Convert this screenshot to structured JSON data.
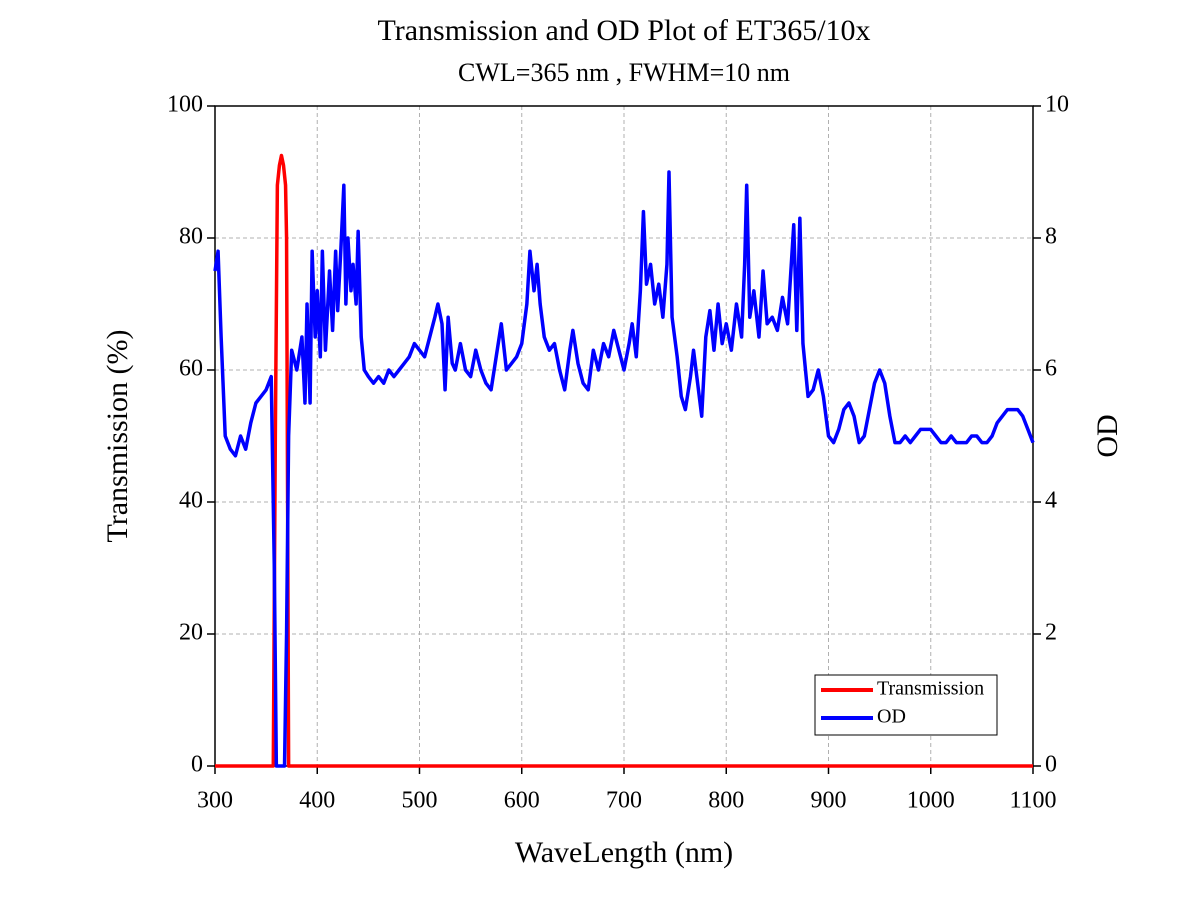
{
  "chart_data": {
    "type": "line",
    "title": "Transmission and OD Plot of ET365/10x",
    "subtitle": "CWL=365 nm , FWHM=10 nm",
    "x_label": "WaveLength (nm)",
    "y_label": "Transmission (%)",
    "y2_label": "OD",
    "xlim": [
      300,
      1100
    ],
    "xticks": [
      300,
      400,
      500,
      600,
      700,
      800,
      900,
      1000,
      1100
    ],
    "ylim": [
      0,
      100
    ],
    "yticks": [
      0,
      20,
      40,
      60,
      80,
      100
    ],
    "y2lim": [
      0,
      10
    ],
    "y2ticks": [
      0,
      2,
      4,
      6,
      8,
      10
    ],
    "grid": true,
    "legend": "lower right",
    "series": [
      {
        "name": "Transmission",
        "color": "#ff0000",
        "axis": "y",
        "x": [
          300,
          357,
          359,
          361,
          363,
          365,
          367,
          369,
          370,
          371,
          372,
          1100
        ],
        "values": [
          0,
          0,
          50,
          88,
          91,
          92.5,
          91,
          88,
          80,
          40,
          0,
          0
        ]
      },
      {
        "name": "OD",
        "color": "#0000ff",
        "axis": "y2",
        "x": [
          300,
          303,
          306,
          310,
          315,
          320,
          325,
          330,
          335,
          340,
          345,
          350,
          355,
          358,
          360,
          368,
          370,
          372,
          375,
          380,
          385,
          388,
          390,
          393,
          395,
          398,
          400,
          403,
          405,
          408,
          412,
          415,
          418,
          420,
          423,
          426,
          428,
          430,
          433,
          435,
          438,
          440,
          443,
          446,
          450,
          455,
          460,
          465,
          470,
          475,
          480,
          485,
          490,
          495,
          500,
          505,
          510,
          515,
          518,
          522,
          525,
          528,
          532,
          535,
          540,
          545,
          550,
          555,
          560,
          565,
          570,
          575,
          580,
          585,
          590,
          595,
          600,
          605,
          608,
          612,
          615,
          618,
          622,
          627,
          632,
          637,
          642,
          647,
          650,
          655,
          660,
          665,
          670,
          675,
          680,
          685,
          690,
          695,
          700,
          705,
          708,
          712,
          716,
          719,
          722,
          726,
          730,
          734,
          738,
          742,
          744,
          747,
          752,
          756,
          760,
          765,
          768,
          772,
          776,
          780,
          784,
          788,
          792,
          796,
          800,
          805,
          810,
          815,
          818,
          820,
          823,
          827,
          832,
          836,
          840,
          845,
          850,
          855,
          860,
          866,
          869,
          872,
          875,
          880,
          885,
          890,
          895,
          900,
          905,
          910,
          915,
          920,
          925,
          930,
          935,
          940,
          945,
          950,
          955,
          960,
          965,
          970,
          975,
          980,
          985,
          990,
          995,
          1000,
          1005,
          1010,
          1015,
          1020,
          1025,
          1030,
          1035,
          1040,
          1045,
          1050,
          1055,
          1060,
          1065,
          1070,
          1075,
          1080,
          1085,
          1090,
          1095,
          1100
        ],
        "values": [
          7.5,
          7.8,
          6.5,
          5.0,
          4.8,
          4.7,
          5.0,
          4.8,
          5.2,
          5.5,
          5.6,
          5.7,
          5.9,
          3.0,
          0,
          0,
          2.0,
          5.0,
          6.3,
          6.0,
          6.5,
          5.5,
          7.0,
          5.5,
          7.8,
          6.5,
          7.2,
          6.2,
          7.8,
          6.3,
          7.5,
          6.6,
          7.8,
          6.9,
          7.8,
          8.8,
          7.0,
          8.0,
          7.2,
          7.6,
          7.0,
          8.1,
          6.5,
          6.0,
          5.9,
          5.8,
          5.9,
          5.8,
          6.0,
          5.9,
          6.0,
          6.1,
          6.2,
          6.4,
          6.3,
          6.2,
          6.5,
          6.8,
          7.0,
          6.7,
          5.7,
          6.8,
          6.1,
          6.0,
          6.4,
          6.0,
          5.9,
          6.3,
          6.0,
          5.8,
          5.7,
          6.2,
          6.7,
          6.0,
          6.1,
          6.2,
          6.4,
          7.0,
          7.8,
          7.2,
          7.6,
          7.0,
          6.5,
          6.3,
          6.4,
          6.0,
          5.7,
          6.3,
          6.6,
          6.1,
          5.8,
          5.7,
          6.3,
          6.0,
          6.4,
          6.2,
          6.6,
          6.3,
          6.0,
          6.4,
          6.7,
          6.2,
          7.2,
          8.4,
          7.3,
          7.6,
          7.0,
          7.3,
          6.8,
          7.6,
          9.0,
          6.8,
          6.2,
          5.6,
          5.4,
          5.9,
          6.3,
          5.8,
          5.3,
          6.5,
          6.9,
          6.3,
          7.0,
          6.4,
          6.7,
          6.3,
          7.0,
          6.5,
          7.6,
          8.8,
          6.8,
          7.2,
          6.5,
          7.5,
          6.7,
          6.8,
          6.6,
          7.1,
          6.7,
          8.2,
          6.6,
          8.3,
          6.4,
          5.6,
          5.7,
          6.0,
          5.6,
          5.0,
          4.9,
          5.1,
          5.4,
          5.5,
          5.3,
          4.9,
          5.0,
          5.4,
          5.8,
          6.0,
          5.8,
          5.3,
          4.9,
          4.9,
          5.0,
          4.9,
          5.0,
          5.1,
          5.1,
          5.1,
          5.0,
          4.9,
          4.9,
          5.0,
          4.9,
          4.9,
          4.9,
          5.0,
          5.0,
          4.9,
          4.9,
          5.0,
          5.2,
          5.3,
          5.4,
          5.4,
          5.4,
          5.3,
          5.1,
          4.9
        ]
      }
    ]
  }
}
